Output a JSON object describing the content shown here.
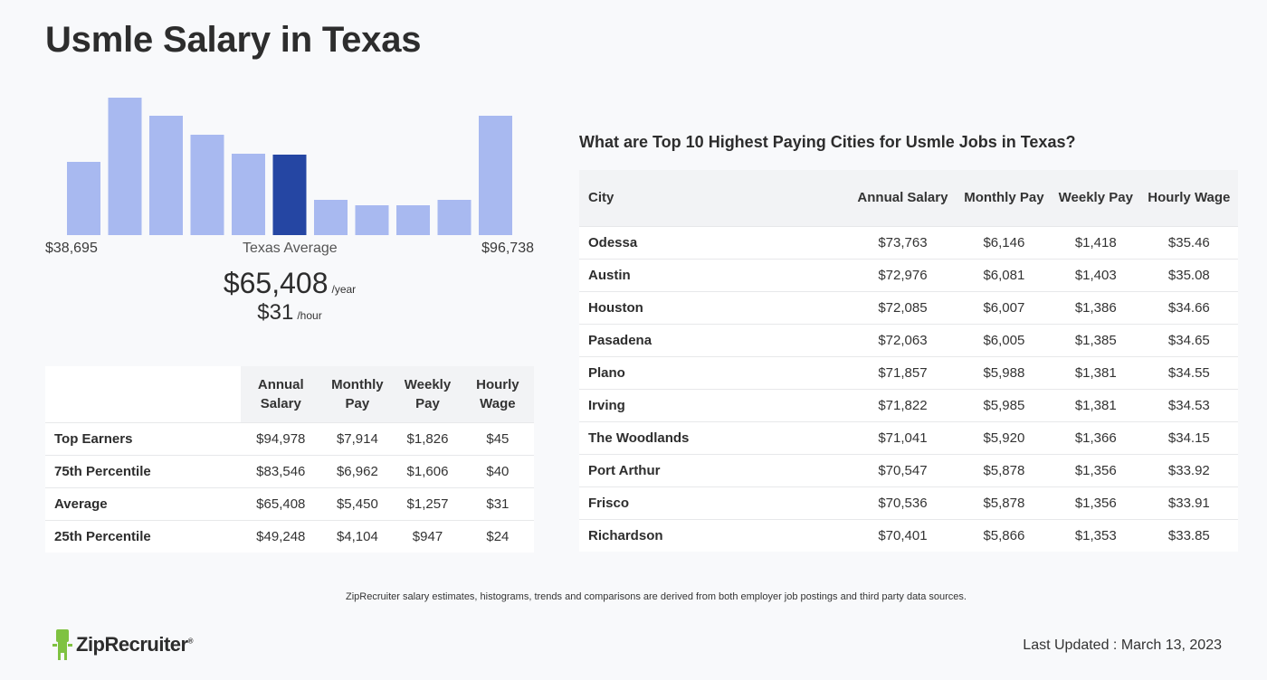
{
  "page": {
    "title": "Usmle Salary in Texas"
  },
  "histogram": {
    "min_label": "$38,695",
    "max_label": "$96,738",
    "center_label": "Texas Average",
    "values": [
      81,
      152,
      132,
      111,
      90,
      89,
      39,
      33,
      33,
      39,
      132
    ],
    "highlight_index": 5,
    "bar_color": "#a8b9f0",
    "highlight_color": "#2546a3"
  },
  "summary": {
    "annual": "$65,408",
    "annual_unit": "/year",
    "hourly": "$31",
    "hourly_unit": "/hour"
  },
  "percentile_table": {
    "headers": [
      "Annual Salary",
      "Monthly Pay",
      "Weekly Pay",
      "Hourly Wage"
    ],
    "rows": [
      {
        "label": "Top Earners",
        "values": [
          "$94,978",
          "$7,914",
          "$1,826",
          "$45"
        ]
      },
      {
        "label": "75th Percentile",
        "values": [
          "$83,546",
          "$6,962",
          "$1,606",
          "$40"
        ]
      },
      {
        "label": "Average",
        "values": [
          "$65,408",
          "$5,450",
          "$1,257",
          "$31"
        ]
      },
      {
        "label": "25th Percentile",
        "values": [
          "$49,248",
          "$4,104",
          "$947",
          "$24"
        ]
      }
    ]
  },
  "cities": {
    "heading": "What are Top 10 Highest Paying Cities for Usmle Jobs in Texas?",
    "headers": [
      "City",
      "Annual Salary",
      "Monthly Pay",
      "Weekly Pay",
      "Hourly Wage"
    ],
    "rows": [
      {
        "city": "Odessa",
        "values": [
          "$73,763",
          "$6,146",
          "$1,418",
          "$35.46"
        ]
      },
      {
        "city": "Austin",
        "values": [
          "$72,976",
          "$6,081",
          "$1,403",
          "$35.08"
        ]
      },
      {
        "city": "Houston",
        "values": [
          "$72,085",
          "$6,007",
          "$1,386",
          "$34.66"
        ]
      },
      {
        "city": "Pasadena",
        "values": [
          "$72,063",
          "$6,005",
          "$1,385",
          "$34.65"
        ]
      },
      {
        "city": "Plano",
        "values": [
          "$71,857",
          "$5,988",
          "$1,381",
          "$34.55"
        ]
      },
      {
        "city": "Irving",
        "values": [
          "$71,822",
          "$5,985",
          "$1,381",
          "$34.53"
        ]
      },
      {
        "city": "The Woodlands",
        "values": [
          "$71,041",
          "$5,920",
          "$1,366",
          "$34.15"
        ]
      },
      {
        "city": "Port Arthur",
        "values": [
          "$70,547",
          "$5,878",
          "$1,356",
          "$33.92"
        ]
      },
      {
        "city": "Frisco",
        "values": [
          "$70,536",
          "$5,878",
          "$1,356",
          "$33.91"
        ]
      },
      {
        "city": "Richardson",
        "values": [
          "$70,401",
          "$5,866",
          "$1,353",
          "$33.85"
        ]
      }
    ]
  },
  "footer": {
    "disclaimer": "ZipRecruiter salary estimates, histograms, trends and comparisons are derived from both employer job postings and third party data sources.",
    "logo_text": "ZipRecruiter",
    "logo_mark": "®",
    "logo_color": "#7fc241",
    "last_updated": "Last Updated : March 13, 2023"
  }
}
